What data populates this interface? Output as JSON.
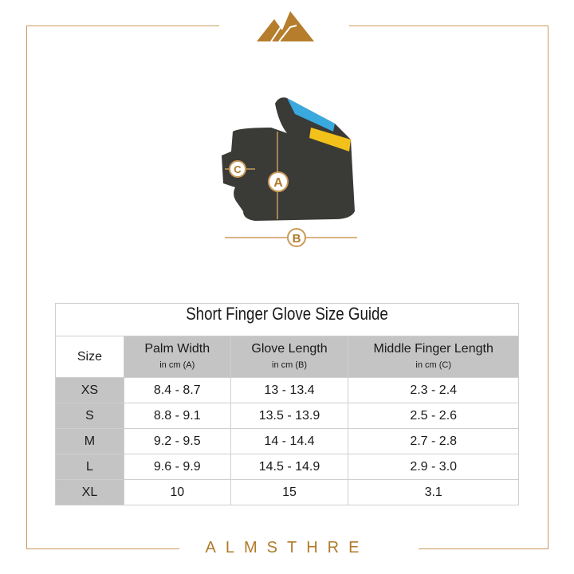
{
  "brand": {
    "name": "ALMSTHRE",
    "color": "#b07a2a"
  },
  "diagram": {
    "labels": {
      "a": "A",
      "b": "B",
      "c": "C"
    }
  },
  "table": {
    "title": "Short Finger Glove Size Guide",
    "headers": [
      {
        "label": "Size",
        "sub": ""
      },
      {
        "label": "Palm Width",
        "sub": "in cm (A)"
      },
      {
        "label": "Glove Length",
        "sub": "in cm (B)"
      },
      {
        "label": "Middle Finger Length",
        "sub": "in cm (C)"
      }
    ],
    "rows": [
      [
        "XS",
        "8.4 - 8.7",
        "13 - 13.4",
        "2.3 - 2.4"
      ],
      [
        "S",
        "8.8 - 9.1",
        "13.5 - 13.9",
        "2.5 - 2.6"
      ],
      [
        "M",
        "9.2 - 9.5",
        "14 - 14.4",
        "2.7 - 2.8"
      ],
      [
        "L",
        "9.6 - 9.9",
        "14.5 - 14.9",
        "2.9 - 3.0"
      ],
      [
        "XL",
        "10",
        "15",
        "3.1"
      ]
    ]
  }
}
